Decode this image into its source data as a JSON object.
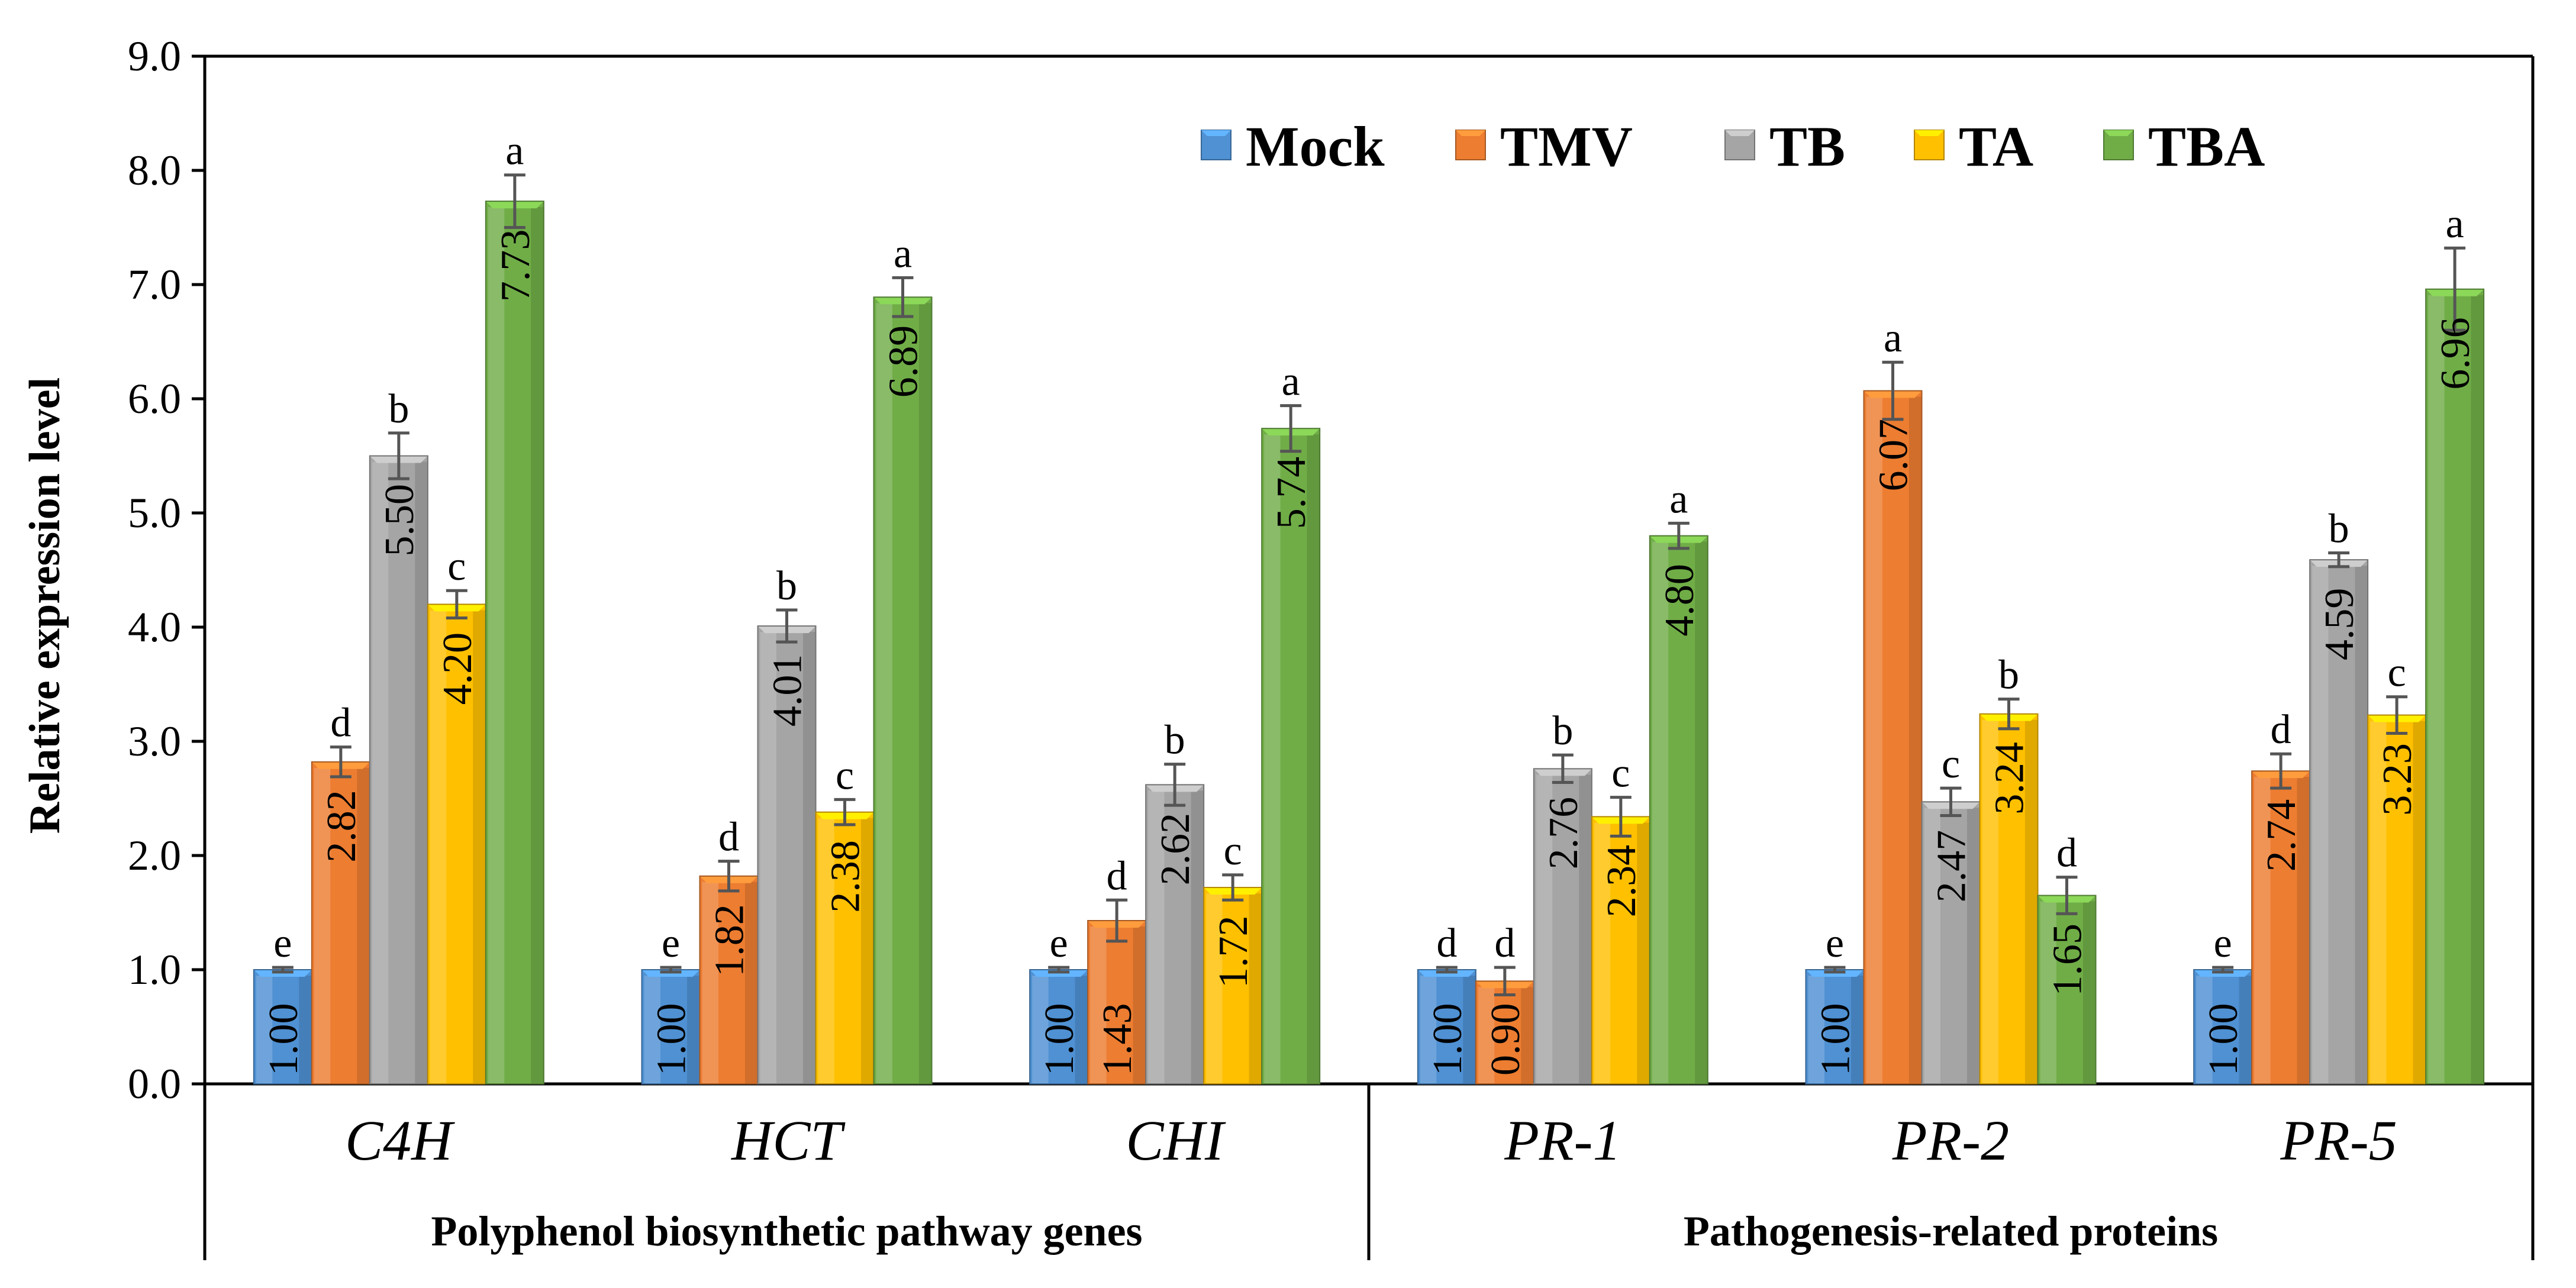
{
  "chart_data": {
    "type": "bar",
    "ylabel": "Relative expression level",
    "ylim": [
      0,
      9
    ],
    "yticks": [
      "0.0",
      "1.0",
      "2.0",
      "3.0",
      "4.0",
      "5.0",
      "6.0",
      "7.0",
      "8.0",
      "9.0"
    ],
    "categories": [
      "C4H",
      "HCT",
      "CHI",
      "PR-1",
      "PR-2",
      "PR-5"
    ],
    "groups": [
      {
        "label": "Polyphenol biosynthetic pathway genes",
        "categories": [
          "C4H",
          "HCT",
          "CHI"
        ]
      },
      {
        "label": "Pathogenesis-related proteins",
        "categories": [
          "PR-1",
          "PR-2",
          "PR-5"
        ]
      }
    ],
    "legend_position": "top-right",
    "grid": false,
    "series": [
      {
        "name": "Mock",
        "color": "#4f91d3",
        "values": [
          1.0,
          1.0,
          1.0,
          1.0,
          1.0,
          1.0
        ],
        "errors": [
          0.02,
          0.02,
          0.02,
          0.02,
          0.02,
          0.02
        ],
        "labels": [
          "1.00",
          "1.00",
          "1.00",
          "1.00",
          "1.00",
          "1.00"
        ],
        "significance": [
          "e",
          "e",
          "e",
          "d",
          "e",
          "e"
        ]
      },
      {
        "name": "TMV",
        "color": "#ed7d31",
        "values": [
          2.82,
          1.82,
          1.43,
          0.9,
          6.07,
          2.74
        ],
        "errors": [
          0.13,
          0.13,
          0.18,
          0.12,
          0.25,
          0.15
        ],
        "labels": [
          "2.82",
          "1.82",
          "1.43",
          "0.90",
          "6.07",
          "2.74"
        ],
        "significance": [
          "d",
          "d",
          "d",
          "d",
          "a",
          "d"
        ]
      },
      {
        "name": "TB",
        "color": "#a5a5a5",
        "values": [
          5.5,
          4.01,
          2.62,
          2.76,
          2.47,
          4.59
        ],
        "errors": [
          0.2,
          0.14,
          0.18,
          0.12,
          0.12,
          0.06
        ],
        "labels": [
          "5.50",
          "4.01",
          "2.62",
          "2.76",
          "2.47",
          "4.59"
        ],
        "significance": [
          "b",
          "b",
          "b",
          "b",
          "c",
          "b"
        ]
      },
      {
        "name": "TA",
        "color": "#ffc000",
        "values": [
          4.2,
          2.38,
          1.72,
          2.34,
          3.24,
          3.23
        ],
        "errors": [
          0.12,
          0.11,
          0.11,
          0.17,
          0.13,
          0.16
        ],
        "labels": [
          "4.20",
          "2.38",
          "1.72",
          "2.34",
          "3.24",
          "3.23"
        ],
        "significance": [
          "c",
          "c",
          "c",
          "c",
          "b",
          "c"
        ]
      },
      {
        "name": "TBA",
        "color": "#70ad47",
        "values": [
          7.73,
          6.89,
          5.74,
          4.8,
          1.65,
          6.96
        ],
        "errors": [
          0.23,
          0.17,
          0.2,
          0.11,
          0.16,
          0.36
        ],
        "labels": [
          "7.73",
          "6.89",
          "5.74",
          "4.80",
          "1.65",
          "6.96"
        ],
        "significance": [
          "a",
          "a",
          "a",
          "a",
          "d",
          "a"
        ]
      }
    ]
  }
}
